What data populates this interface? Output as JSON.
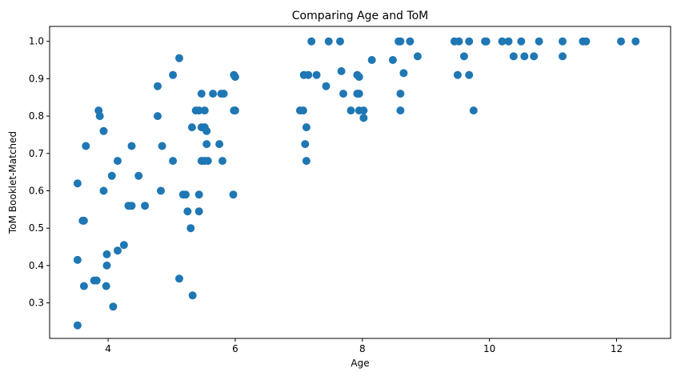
{
  "chart_data": {
    "type": "scatter",
    "title": "Comparing Age and ToM",
    "xlabel": "Age",
    "ylabel": "ToM Booklet-Matched",
    "xlim": [
      3.08,
      12.85
    ],
    "ylim": [
      0.205,
      1.04
    ],
    "x_ticks": [
      4,
      6,
      8,
      10,
      12
    ],
    "x_tick_labels": [
      "4",
      "6",
      "8",
      "10",
      "12"
    ],
    "y_ticks": [
      0.3,
      0.4,
      0.5,
      0.6,
      0.7,
      0.8,
      0.9,
      1.0
    ],
    "y_tick_labels": [
      "0.3",
      "0.4",
      "0.5",
      "0.6",
      "0.7",
      "0.8",
      "0.9",
      "1.0"
    ],
    "grid": false,
    "legend": "none",
    "marker_color": "#1f77b4",
    "points": [
      [
        3.52,
        0.24
      ],
      [
        3.52,
        0.415
      ],
      [
        3.52,
        0.62
      ],
      [
        3.6,
        0.52
      ],
      [
        3.62,
        0.52
      ],
      [
        3.62,
        0.345
      ],
      [
        3.65,
        0.72
      ],
      [
        3.78,
        0.36
      ],
      [
        3.82,
        0.36
      ],
      [
        3.85,
        0.815
      ],
      [
        3.87,
        0.8
      ],
      [
        3.93,
        0.6
      ],
      [
        3.93,
        0.76
      ],
      [
        3.97,
        0.345
      ],
      [
        3.98,
        0.4
      ],
      [
        3.98,
        0.43
      ],
      [
        4.06,
        0.64
      ],
      [
        4.08,
        0.29
      ],
      [
        4.15,
        0.44
      ],
      [
        4.15,
        0.68
      ],
      [
        4.25,
        0.455
      ],
      [
        4.32,
        0.56
      ],
      [
        4.37,
        0.56
      ],
      [
        4.37,
        0.72
      ],
      [
        4.48,
        0.64
      ],
      [
        4.58,
        0.56
      ],
      [
        4.78,
        0.88
      ],
      [
        4.78,
        0.8
      ],
      [
        4.83,
        0.6
      ],
      [
        4.85,
        0.72
      ],
      [
        5.02,
        0.68
      ],
      [
        5.02,
        0.91
      ],
      [
        5.12,
        0.955
      ],
      [
        5.12,
        0.365
      ],
      [
        5.18,
        0.59
      ],
      [
        5.22,
        0.59
      ],
      [
        5.25,
        0.545
      ],
      [
        5.3,
        0.5
      ],
      [
        5.32,
        0.77
      ],
      [
        5.33,
        0.32
      ],
      [
        5.38,
        0.815
      ],
      [
        5.43,
        0.815
      ],
      [
        5.43,
        0.59
      ],
      [
        5.43,
        0.545
      ],
      [
        5.47,
        0.86
      ],
      [
        5.47,
        0.77
      ],
      [
        5.47,
        0.68
      ],
      [
        5.52,
        0.815
      ],
      [
        5.52,
        0.77
      ],
      [
        5.52,
        0.68
      ],
      [
        5.55,
        0.76
      ],
      [
        5.55,
        0.725
      ],
      [
        5.57,
        0.68
      ],
      [
        5.65,
        0.86
      ],
      [
        5.75,
        0.725
      ],
      [
        5.78,
        0.86
      ],
      [
        5.8,
        0.68
      ],
      [
        5.82,
        0.86
      ],
      [
        5.97,
        0.59
      ],
      [
        5.98,
        0.91
      ],
      [
        6.0,
        0.905
      ],
      [
        5.98,
        0.815
      ],
      [
        6.0,
        0.815
      ],
      [
        7.02,
        0.815
      ],
      [
        7.07,
        0.815
      ],
      [
        7.08,
        0.91
      ],
      [
        7.1,
        0.725
      ],
      [
        7.12,
        0.77
      ],
      [
        7.12,
        0.68
      ],
      [
        7.15,
        0.91
      ],
      [
        7.2,
        1.0
      ],
      [
        7.28,
        0.91
      ],
      [
        7.43,
        0.88
      ],
      [
        7.47,
        1.0
      ],
      [
        7.65,
        1.0
      ],
      [
        7.67,
        0.92
      ],
      [
        7.7,
        0.86
      ],
      [
        7.82,
        0.815
      ],
      [
        7.92,
        0.91
      ],
      [
        7.92,
        0.86
      ],
      [
        7.95,
        0.905
      ],
      [
        7.95,
        0.86
      ],
      [
        7.95,
        0.815
      ],
      [
        8.02,
        0.815
      ],
      [
        8.02,
        0.795
      ],
      [
        8.15,
        0.95
      ],
      [
        8.48,
        0.95
      ],
      [
        8.57,
        1.0
      ],
      [
        8.6,
        1.0
      ],
      [
        8.6,
        0.86
      ],
      [
        8.6,
        0.815
      ],
      [
        8.65,
        0.915
      ],
      [
        8.75,
        1.0
      ],
      [
        8.87,
        0.96
      ],
      [
        9.45,
        1.0
      ],
      [
        9.5,
        0.91
      ],
      [
        9.52,
        1.0
      ],
      [
        9.6,
        0.96
      ],
      [
        9.68,
        1.0
      ],
      [
        9.68,
        0.91
      ],
      [
        9.75,
        0.815
      ],
      [
        9.93,
        1.0
      ],
      [
        9.95,
        1.0
      ],
      [
        10.2,
        1.0
      ],
      [
        10.3,
        1.0
      ],
      [
        10.38,
        0.96
      ],
      [
        10.5,
        1.0
      ],
      [
        10.55,
        0.96
      ],
      [
        10.7,
        0.96
      ],
      [
        10.78,
        1.0
      ],
      [
        11.15,
        1.0
      ],
      [
        11.15,
        0.96
      ],
      [
        11.47,
        1.0
      ],
      [
        11.52,
        1.0
      ],
      [
        12.07,
        1.0
      ],
      [
        12.3,
        1.0
      ]
    ]
  }
}
